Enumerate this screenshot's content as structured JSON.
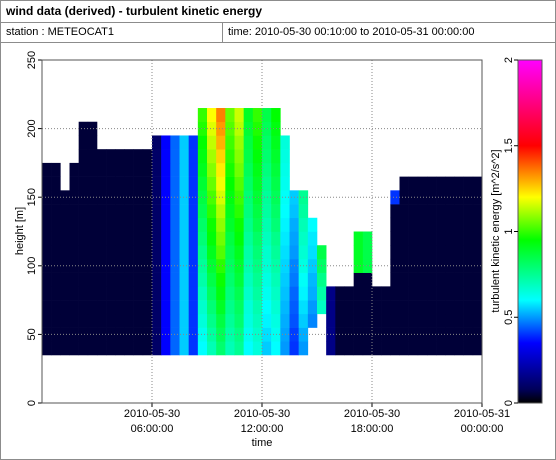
{
  "header": {
    "title": "wind data (derived) - turbulent kinetic energy",
    "station": "station : METEOCAT1",
    "time": "time: 2010-05-30 00:10:00 to 2010-05-31 00:00:00"
  },
  "chart_data": {
    "type": "heatmap",
    "x_label": "time",
    "y_label": "height [m]",
    "colorbar_label": "turbulent kinetic energy [m^2/s^2]",
    "xlim": [
      "2010-05-30 00:00:00",
      "2010-05-31 00:00:00"
    ],
    "xticks": [
      {
        "value": "2010-05-30 06:00:00",
        "label": [
          "2010-05-30",
          "06:00:00"
        ]
      },
      {
        "value": "2010-05-30 12:00:00",
        "label": [
          "2010-05-30",
          "12:00:00"
        ]
      },
      {
        "value": "2010-05-30 18:00:00",
        "label": [
          "2010-05-30",
          "18:00:00"
        ]
      },
      {
        "value": "2010-05-31 00:00:00",
        "label": [
          "2010-05-31",
          "00:00:00"
        ]
      }
    ],
    "ylim": [
      0,
      250
    ],
    "yticks": [
      0,
      50,
      100,
      150,
      200,
      250
    ],
    "grid": true,
    "clim": [
      0,
      2
    ],
    "cticks": [
      0,
      0.5,
      1,
      1.5,
      2
    ],
    "colormap": [
      {
        "value": 0,
        "color": "#000000"
      },
      {
        "value": 0.08,
        "color": "#00005a"
      },
      {
        "value": 0.35,
        "color": "#0000ff"
      },
      {
        "value": 0.6,
        "color": "#00ffff"
      },
      {
        "value": 0.95,
        "color": "#00ff00"
      },
      {
        "value": 1.2,
        "color": "#ffff00"
      },
      {
        "value": 1.5,
        "color": "#ff0000"
      },
      {
        "value": 2,
        "color": "#ff00ff"
      }
    ],
    "x": [
      "2010-05-30 00:00:00",
      "2010-05-30 00:30:00",
      "2010-05-30 01:00:00",
      "2010-05-30 01:30:00",
      "2010-05-30 02:00:00",
      "2010-05-30 02:30:00",
      "2010-05-30 03:00:00",
      "2010-05-30 03:30:00",
      "2010-05-30 04:00:00",
      "2010-05-30 04:30:00",
      "2010-05-30 05:00:00",
      "2010-05-30 05:30:00",
      "2010-05-30 06:00:00",
      "2010-05-30 06:30:00",
      "2010-05-30 07:00:00",
      "2010-05-30 07:30:00",
      "2010-05-30 08:00:00",
      "2010-05-30 08:30:00",
      "2010-05-30 09:00:00",
      "2010-05-30 09:30:00",
      "2010-05-30 10:00:00",
      "2010-05-30 10:30:00",
      "2010-05-30 11:00:00",
      "2010-05-30 11:30:00",
      "2010-05-30 12:00:00",
      "2010-05-30 12:30:00",
      "2010-05-30 13:00:00",
      "2010-05-30 13:30:00",
      "2010-05-30 14:00:00",
      "2010-05-30 14:30:00",
      "2010-05-30 15:00:00",
      "2010-05-30 15:30:00",
      "2010-05-30 16:00:00",
      "2010-05-30 16:30:00",
      "2010-05-30 17:00:00",
      "2010-05-30 17:30:00",
      "2010-05-30 18:00:00",
      "2010-05-30 18:30:00",
      "2010-05-30 19:00:00",
      "2010-05-30 19:30:00",
      "2010-05-30 20:00:00",
      "2010-05-30 20:30:00",
      "2010-05-30 21:00:00",
      "2010-05-30 21:30:00",
      "2010-05-30 22:00:00",
      "2010-05-30 22:30:00",
      "2010-05-30 23:00:00",
      "2010-05-30 23:30:00"
    ],
    "y": [
      40,
      50,
      60,
      70,
      80,
      90,
      100,
      110,
      120,
      130,
      140,
      150,
      160,
      170,
      180,
      190,
      200,
      210
    ],
    "values": [
      [
        0.05,
        0.05,
        0.05,
        0.05,
        0.05,
        0.05,
        0.05,
        0.05,
        0.05,
        0.05,
        0.05,
        0.05,
        0.1,
        0.35,
        0.45,
        0.55,
        0.4,
        0.6,
        0.7,
        0.8,
        0.7,
        0.75,
        0.6,
        0.65,
        0.55,
        0.6,
        0.5,
        0.4,
        0.5,
        null,
        null,
        0.15,
        0.05,
        0.05,
        0.05,
        0.05,
        0.05,
        0.05,
        0.05,
        0.05,
        0.05,
        0.05,
        0.05,
        0.05,
        0.05,
        0.05,
        0.05,
        0.05
      ],
      [
        0.05,
        0.05,
        0.05,
        0.05,
        0.05,
        0.05,
        0.05,
        0.05,
        0.05,
        0.05,
        0.05,
        0.05,
        0.1,
        0.35,
        0.45,
        0.55,
        0.4,
        0.62,
        0.73,
        0.83,
        0.72,
        0.77,
        0.62,
        0.67,
        0.57,
        0.62,
        0.51,
        0.41,
        0.52,
        null,
        null,
        0.15,
        0.05,
        0.05,
        0.05,
        0.05,
        0.05,
        0.05,
        0.05,
        0.05,
        0.05,
        0.05,
        0.05,
        0.05,
        0.05,
        0.05,
        0.05,
        0.05
      ],
      [
        0.05,
        0.05,
        0.05,
        0.05,
        0.05,
        0.05,
        0.05,
        0.05,
        0.05,
        0.05,
        0.05,
        0.05,
        0.1,
        0.35,
        0.45,
        0.55,
        0.4,
        0.65,
        0.76,
        0.86,
        0.74,
        0.8,
        0.64,
        0.69,
        0.59,
        0.64,
        0.52,
        0.43,
        0.55,
        0.48,
        null,
        0.15,
        0.05,
        0.05,
        0.05,
        0.05,
        0.05,
        0.05,
        0.05,
        0.05,
        0.05,
        0.05,
        0.05,
        0.05,
        0.05,
        0.05,
        0.05,
        0.05
      ],
      [
        0.05,
        0.05,
        0.05,
        0.05,
        0.05,
        0.05,
        0.05,
        0.05,
        0.05,
        0.05,
        0.05,
        0.05,
        0.1,
        0.35,
        0.45,
        0.55,
        0.4,
        0.67,
        0.79,
        0.9,
        0.76,
        0.82,
        0.65,
        0.71,
        0.6,
        0.66,
        0.53,
        0.44,
        0.57,
        0.5,
        0.68,
        0.15,
        0.05,
        0.05,
        0.05,
        0.05,
        0.05,
        0.05,
        0.05,
        0.05,
        0.05,
        0.05,
        0.05,
        0.05,
        0.05,
        0.05,
        0.05,
        0.05
      ],
      [
        0.05,
        0.05,
        0.05,
        0.05,
        0.05,
        0.05,
        0.05,
        0.05,
        0.05,
        0.05,
        0.05,
        0.05,
        0.1,
        0.35,
        0.45,
        0.55,
        0.4,
        0.69,
        0.82,
        0.93,
        0.78,
        0.84,
        0.67,
        0.73,
        0.62,
        0.68,
        0.54,
        0.45,
        0.59,
        0.52,
        0.72,
        0.15,
        0.05,
        0.05,
        0.05,
        0.05,
        0.05,
        0.05,
        0.05,
        0.05,
        0.05,
        0.05,
        0.05,
        0.05,
        0.05,
        0.05,
        0.05,
        0.05
      ],
      [
        0.05,
        0.05,
        0.05,
        0.05,
        0.05,
        0.05,
        0.05,
        0.05,
        0.05,
        0.05,
        0.05,
        0.05,
        0.1,
        0.35,
        0.45,
        0.55,
        0.4,
        0.72,
        0.85,
        0.96,
        0.8,
        0.87,
        0.69,
        0.75,
        0.64,
        0.7,
        0.55,
        0.47,
        0.61,
        0.53,
        0.76,
        null,
        null,
        null,
        0.05,
        0.05,
        null,
        null,
        0.05,
        0.05,
        0.05,
        0.05,
        0.05,
        0.05,
        0.05,
        0.05,
        0.05,
        0.05
      ],
      [
        0.05,
        0.05,
        0.05,
        0.05,
        0.05,
        0.05,
        0.05,
        0.05,
        0.05,
        0.05,
        0.05,
        0.05,
        0.1,
        0.35,
        0.45,
        0.55,
        0.4,
        0.74,
        0.88,
        0.99,
        0.82,
        0.89,
        0.71,
        0.77,
        0.66,
        0.72,
        0.56,
        0.48,
        0.64,
        0.55,
        0.81,
        null,
        null,
        null,
        0.9,
        0.85,
        null,
        null,
        0.05,
        0.05,
        0.05,
        0.05,
        0.05,
        0.05,
        0.05,
        0.05,
        0.05,
        0.05
      ],
      [
        0.05,
        0.05,
        0.05,
        0.05,
        0.05,
        0.05,
        0.05,
        0.05,
        0.05,
        0.05,
        0.05,
        0.05,
        0.1,
        0.35,
        0.45,
        0.55,
        0.4,
        0.76,
        0.91,
        1.03,
        0.84,
        0.91,
        0.72,
        0.79,
        0.67,
        0.74,
        0.57,
        0.5,
        0.66,
        0.57,
        0.85,
        null,
        null,
        null,
        0.9,
        0.85,
        null,
        null,
        0.05,
        0.05,
        0.05,
        0.05,
        0.05,
        0.05,
        0.05,
        0.05,
        0.05,
        0.05
      ],
      [
        0.05,
        0.05,
        0.05,
        0.05,
        0.05,
        0.05,
        0.05,
        0.05,
        0.05,
        0.05,
        0.05,
        0.05,
        0.1,
        0.35,
        0.45,
        0.55,
        0.4,
        0.79,
        0.94,
        1.06,
        0.86,
        0.94,
        0.74,
        0.81,
        0.69,
        0.76,
        0.58,
        0.51,
        0.68,
        0.58,
        null,
        null,
        null,
        null,
        0.9,
        0.85,
        null,
        null,
        0.05,
        0.05,
        0.05,
        0.05,
        0.05,
        0.05,
        0.05,
        0.05,
        0.05,
        0.05
      ],
      [
        0.05,
        0.05,
        0.05,
        0.05,
        0.05,
        0.05,
        0.05,
        0.05,
        0.05,
        0.05,
        0.05,
        0.05,
        0.1,
        0.35,
        0.45,
        0.55,
        0.4,
        0.81,
        0.96,
        1.09,
        0.89,
        0.96,
        0.76,
        0.84,
        0.71,
        0.79,
        0.59,
        0.52,
        0.7,
        0.6,
        null,
        null,
        null,
        null,
        null,
        null,
        null,
        null,
        0.05,
        0.05,
        0.05,
        0.05,
        0.05,
        0.05,
        0.05,
        0.05,
        0.05,
        0.05
      ],
      [
        0.05,
        0.05,
        0.05,
        0.05,
        0.05,
        0.05,
        0.05,
        0.05,
        0.05,
        0.05,
        0.05,
        0.05,
        0.1,
        0.35,
        0.45,
        0.55,
        0.4,
        0.84,
        0.99,
        1.12,
        0.91,
        0.99,
        0.78,
        0.86,
        0.73,
        0.81,
        0.6,
        0.54,
        0.73,
        null,
        null,
        null,
        null,
        null,
        null,
        null,
        null,
        null,
        0.05,
        0.05,
        0.05,
        0.05,
        0.05,
        0.05,
        0.05,
        0.05,
        0.05,
        0.05
      ],
      [
        0.05,
        0.05,
        0.05,
        0.05,
        0.05,
        0.05,
        0.05,
        0.05,
        0.05,
        0.05,
        0.05,
        0.05,
        0.1,
        0.35,
        0.45,
        0.55,
        0.4,
        0.86,
        1.02,
        1.16,
        0.93,
        1.01,
        0.79,
        0.88,
        0.74,
        0.83,
        0.61,
        0.55,
        0.75,
        null,
        null,
        null,
        null,
        null,
        null,
        null,
        null,
        null,
        0.4,
        0.05,
        0.05,
        0.05,
        0.05,
        0.05,
        0.05,
        0.05,
        0.05,
        0.05
      ],
      [
        0.05,
        0.05,
        null,
        0.05,
        0.05,
        0.05,
        0.05,
        0.05,
        0.05,
        0.05,
        0.05,
        0.05,
        0.1,
        0.35,
        0.45,
        0.55,
        0.4,
        0.88,
        1.05,
        1.19,
        0.95,
        1.03,
        0.81,
        0.9,
        0.76,
        0.85,
        0.62,
        null,
        null,
        null,
        null,
        null,
        null,
        null,
        null,
        null,
        null,
        null,
        null,
        0.05,
        0.05,
        0.05,
        0.05,
        0.05,
        0.05,
        0.05,
        0.05,
        0.05
      ],
      [
        0.05,
        0.05,
        null,
        0.05,
        0.05,
        0.05,
        0.05,
        0.05,
        0.05,
        0.05,
        0.05,
        0.05,
        0.1,
        0.35,
        0.45,
        0.55,
        0.4,
        0.91,
        1.08,
        1.22,
        0.97,
        1.06,
        0.83,
        0.92,
        0.78,
        0.87,
        0.63,
        null,
        null,
        null,
        null,
        null,
        null,
        null,
        null,
        null,
        null,
        null,
        null,
        null,
        null,
        null,
        null,
        null,
        null,
        null,
        null,
        null
      ],
      [
        null,
        null,
        null,
        null,
        0.05,
        0.05,
        0.05,
        0.05,
        0.05,
        0.05,
        0.05,
        0.05,
        0.1,
        0.35,
        0.45,
        0.55,
        0.4,
        0.93,
        1.11,
        1.25,
        0.99,
        1.08,
        0.85,
        0.94,
        0.8,
        0.89,
        0.64,
        null,
        null,
        null,
        null,
        null,
        null,
        null,
        null,
        null,
        null,
        null,
        null,
        null,
        null,
        null,
        null,
        null,
        null,
        null,
        null,
        null
      ],
      [
        null,
        null,
        null,
        null,
        0.05,
        0.05,
        null,
        null,
        null,
        null,
        null,
        null,
        0.1,
        0.35,
        0.45,
        0.55,
        0.4,
        0.95,
        1.14,
        1.29,
        1.01,
        1.1,
        0.86,
        0.96,
        0.81,
        0.91,
        0.65,
        null,
        null,
        null,
        null,
        null,
        null,
        null,
        null,
        null,
        null,
        null,
        null,
        null,
        null,
        null,
        null,
        null,
        null,
        null,
        null,
        null
      ],
      [
        null,
        null,
        null,
        null,
        0.05,
        0.05,
        null,
        null,
        null,
        null,
        null,
        null,
        null,
        null,
        null,
        null,
        null,
        0.98,
        1.17,
        1.32,
        1.03,
        1.13,
        0.88,
        0.98,
        0.83,
        0.93,
        null,
        null,
        null,
        null,
        null,
        null,
        null,
        null,
        null,
        null,
        null,
        null,
        null,
        null,
        null,
        null,
        null,
        null,
        null,
        null,
        null,
        null
      ],
      [
        null,
        null,
        null,
        null,
        null,
        null,
        null,
        null,
        null,
        null,
        null,
        null,
        null,
        null,
        null,
        null,
        null,
        1,
        1.2,
        1.35,
        1.05,
        1.15,
        0.9,
        1,
        0.85,
        0.95,
        null,
        null,
        null,
        null,
        null,
        null,
        null,
        null,
        null,
        null,
        null,
        null,
        null,
        null,
        null,
        null,
        null,
        null,
        null,
        null,
        null,
        null
      ]
    ]
  }
}
